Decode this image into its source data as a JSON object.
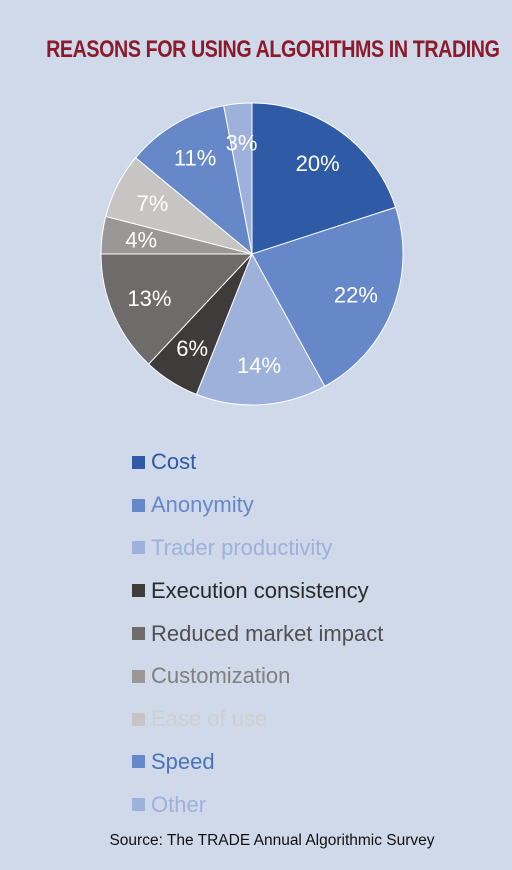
{
  "chart_data": {
    "type": "pie",
    "title": "REASONS FOR USING ALGORITHMS IN TRADING",
    "categories": [
      "Cost",
      "Anonymity",
      "Trader productivity",
      "Execution consistency",
      "Reduced market impact",
      "Customization",
      "Ease of use",
      "Speed",
      "Other"
    ],
    "values": [
      20,
      22,
      14,
      6,
      13,
      4,
      7,
      11,
      3
    ],
    "value_labels": [
      "20%",
      "22%",
      "14%",
      "6%",
      "13%",
      "4%",
      "7%",
      "11%",
      "3%"
    ],
    "colors": [
      "#2e5aa6",
      "#6688c8",
      "#9db1db",
      "#3f3b3a",
      "#6e6c6a",
      "#9a9897",
      "#c6c5c4",
      "#6688c8",
      "#9db1db"
    ],
    "legend_text_colors": [
      "#2e5aa6",
      "#6688c8",
      "#9db1db",
      "#2a2a2a",
      "#4f4f4f",
      "#7f7f7f",
      "#cfcfcf",
      "#4a72bd",
      "#9db1db"
    ],
    "legend_position": "bottom",
    "source": "Source: The TRADE Annual Algorithmic Survey"
  }
}
